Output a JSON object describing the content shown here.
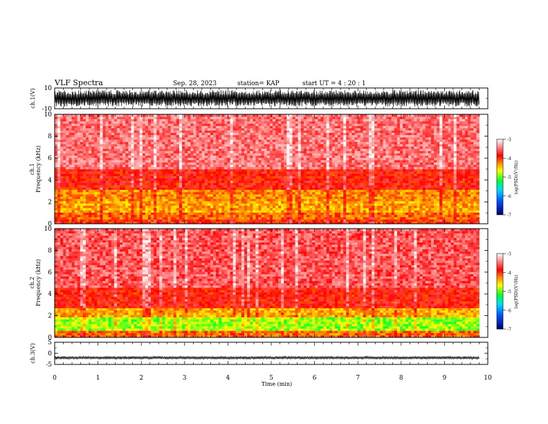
{
  "header": {
    "title": "VLF Spectra",
    "date": "Sep. 28, 2023",
    "station": "station= KAP",
    "start": "start UT =  4 : 20 : 1"
  },
  "chart_data": [
    {
      "type": "line",
      "panel": "ch1_waveform",
      "ylabel": "ch.1(V)",
      "ylim": [
        -10,
        10
      ],
      "yticks": [
        10,
        -10
      ],
      "xlim": [
        0,
        10
      ],
      "data_end_min": 9.8,
      "description_values": "dense oscillation filling roughly -8 to +8 V",
      "amplitude": 8
    },
    {
      "type": "heatmap",
      "panel": "ch1_spectrogram",
      "ylabel_line1": "ch.1",
      "ylabel_line2": "Frequency (kHz)",
      "ylim": [
        0,
        10
      ],
      "yticks": [
        0,
        2,
        4,
        6,
        8,
        10
      ],
      "xlim": [
        0,
        10
      ],
      "data_end_min": 9.8,
      "colorbar": {
        "label": "log(PSD)(V²/Hz)",
        "range": [
          -7,
          -3
        ],
        "ticks": [
          "-3",
          "-4",
          "-5",
          "-6",
          "-7"
        ]
      },
      "bands": [
        {
          "f0": 0.0,
          "f1": 0.5,
          "level": -4.0
        },
        {
          "f0": 0.5,
          "f1": 1.0,
          "level": -4.2
        },
        {
          "f0": 1.0,
          "f1": 2.0,
          "level": -4.4
        },
        {
          "f0": 2.0,
          "f1": 3.2,
          "level": -4.3
        },
        {
          "f0": 3.2,
          "f1": 5.0,
          "level": -3.9
        },
        {
          "f0": 5.0,
          "f1": 10.0,
          "level": -3.5
        }
      ]
    },
    {
      "type": "heatmap",
      "panel": "ch2_spectrogram",
      "ylabel_line1": "ch.2",
      "ylabel_line2": "Frequency (kHz)",
      "ylim": [
        0,
        10
      ],
      "yticks": [
        0,
        2,
        4,
        6,
        8,
        10
      ],
      "xlim": [
        0,
        10
      ],
      "data_end_min": 9.8,
      "colorbar": {
        "label": "log(PSD)(V²/Hz)",
        "range": [
          -7,
          -3
        ],
        "ticks": [
          "-3",
          "-4",
          "-5",
          "-6",
          "-7"
        ]
      },
      "bands": [
        {
          "f0": 0.0,
          "f1": 0.6,
          "level": -4.2
        },
        {
          "f0": 0.6,
          "f1": 1.8,
          "level": -4.9
        },
        {
          "f0": 1.8,
          "f1": 2.8,
          "level": -4.4
        },
        {
          "f0": 2.8,
          "f1": 4.5,
          "level": -3.9
        },
        {
          "f0": 4.5,
          "f1": 10.0,
          "level": -3.6
        }
      ]
    },
    {
      "type": "line",
      "panel": "ch3_waveform",
      "ylabel": "ch.3(V)",
      "ylim": [
        -5,
        5
      ],
      "yticks": [
        5,
        0,
        -5
      ],
      "xlim": [
        0,
        10
      ],
      "data_end_min": 9.8,
      "center": -2,
      "amplitude": 0.7
    }
  ],
  "x_axis": {
    "label": "Time (min)",
    "ticks": [
      0,
      1,
      2,
      3,
      4,
      5,
      6,
      7,
      8,
      9,
      10
    ]
  },
  "colors": {
    "colormap": [
      "#00006e",
      "#0050ff",
      "#00ddff",
      "#00ff30",
      "#ffff00",
      "#ff8c00",
      "#ff0000",
      "#ffffff"
    ],
    "axis": "#000000"
  }
}
